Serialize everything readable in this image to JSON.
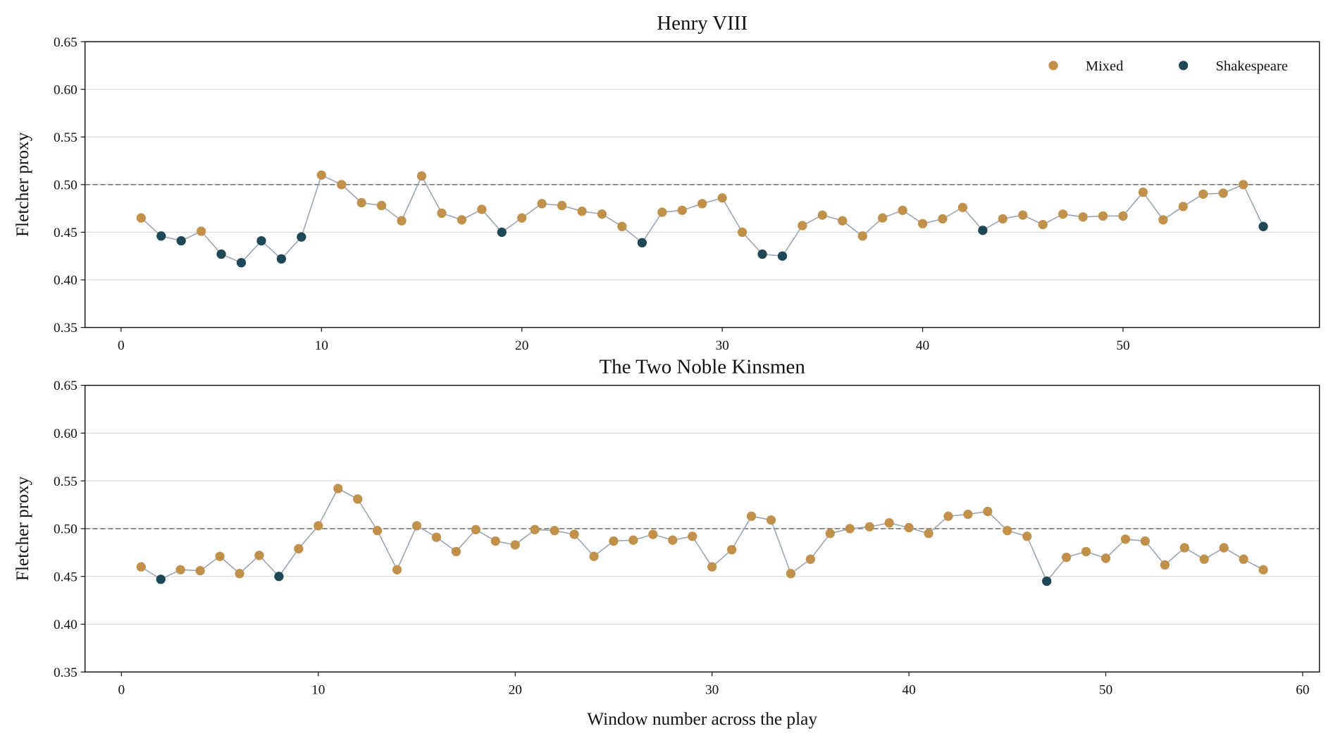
{
  "chart_data": [
    {
      "type": "line",
      "title": "Henry VIII",
      "ylabel": "Fletcher proxy",
      "x": [
        1,
        2,
        3,
        4,
        5,
        6,
        7,
        8,
        9,
        10,
        11,
        12,
        13,
        14,
        15,
        16,
        17,
        18,
        19,
        20,
        21,
        22,
        23,
        24,
        25,
        26,
        27,
        28,
        29,
        30,
        31,
        32,
        33,
        34,
        35,
        36,
        37,
        38,
        39,
        40,
        41,
        42,
        43,
        44,
        45,
        46,
        47,
        48,
        49,
        50,
        51,
        52,
        53,
        54,
        55,
        56,
        57
      ],
      "series": [
        {
          "name": "Mixed",
          "color": "#c1904a",
          "values": [
            0.465,
            null,
            null,
            0.451,
            null,
            null,
            null,
            null,
            null,
            0.51,
            0.5,
            0.481,
            0.478,
            0.462,
            0.509,
            0.47,
            0.463,
            0.474,
            null,
            0.465,
            0.48,
            0.478,
            0.472,
            0.469,
            0.456,
            null,
            0.471,
            0.473,
            0.48,
            0.486,
            0.45,
            null,
            null,
            0.457,
            0.468,
            0.462,
            0.446,
            0.465,
            0.473,
            0.459,
            0.464,
            0.476,
            null,
            0.464,
            0.468,
            0.458,
            0.469,
            0.466,
            0.467,
            0.467,
            0.492,
            0.463,
            0.477,
            0.49,
            0.491,
            0.5,
            null
          ]
        },
        {
          "name": "Shakespeare",
          "color": "#1f4857",
          "values": [
            null,
            0.446,
            0.441,
            null,
            0.427,
            0.418,
            0.441,
            0.422,
            0.445,
            null,
            null,
            null,
            null,
            null,
            null,
            null,
            null,
            null,
            0.45,
            null,
            null,
            null,
            null,
            null,
            null,
            0.439,
            null,
            null,
            null,
            null,
            null,
            0.427,
            0.425,
            null,
            null,
            null,
            null,
            null,
            null,
            null,
            null,
            null,
            0.452,
            null,
            null,
            null,
            null,
            null,
            null,
            null,
            null,
            null,
            null,
            null,
            null,
            null,
            0.456
          ]
        }
      ],
      "line_color": "#9aa4b0",
      "reference_line": 0.5,
      "legend": "upper right",
      "grid": true,
      "xlim": [
        -1.8,
        59.8
      ],
      "xticks": [
        0,
        10,
        20,
        30,
        40,
        50
      ],
      "ylim": [
        0.35,
        0.65
      ],
      "yticks": [
        0.35,
        {
          "value": 0.4,
          "label": "0.40"
        },
        0.45,
        {
          "value": 0.5,
          "label": "0.50"
        },
        0.55,
        {
          "value": 0.6,
          "label": "0.60"
        },
        0.65
      ]
    },
    {
      "type": "line",
      "title": "The Two Noble Kinsmen",
      "xlabel": "Window number across the play",
      "ylabel": "Fletcher proxy",
      "x": [
        1,
        2,
        3,
        4,
        5,
        6,
        7,
        8,
        9,
        10,
        11,
        12,
        13,
        14,
        15,
        16,
        17,
        18,
        19,
        20,
        21,
        22,
        23,
        24,
        25,
        26,
        27,
        28,
        29,
        30,
        31,
        32,
        33,
        34,
        35,
        36,
        37,
        38,
        39,
        40,
        41,
        42,
        43,
        44,
        45,
        46,
        47,
        48,
        49,
        50,
        51,
        52,
        53,
        54,
        55,
        56,
        57,
        58
      ],
      "series": [
        {
          "color": "#c1904a",
          "values": [
            0.46,
            null,
            0.457,
            0.456,
            0.471,
            0.453,
            0.472,
            null,
            0.479,
            0.503,
            0.542,
            0.531,
            0.498,
            0.457,
            0.503,
            0.491,
            0.476,
            0.499,
            0.487,
            0.483,
            0.499,
            0.498,
            0.494,
            0.471,
            0.487,
            0.488,
            0.494,
            0.488,
            0.492,
            0.46,
            0.478,
            0.513,
            0.509,
            0.453,
            0.468,
            0.495,
            0.5,
            0.502,
            0.506,
            0.501,
            0.495,
            0.513,
            0.515,
            0.518,
            0.498,
            0.492,
            null,
            0.47,
            0.476,
            0.469,
            0.489,
            0.487,
            0.462,
            0.48,
            0.468,
            0.48,
            0.468,
            0.457
          ]
        },
        {
          "color": "#1f4857",
          "values": [
            null,
            0.447,
            null,
            null,
            null,
            null,
            null,
            0.45,
            null,
            null,
            null,
            null,
            null,
            null,
            null,
            null,
            null,
            null,
            null,
            null,
            null,
            null,
            null,
            null,
            null,
            null,
            null,
            null,
            null,
            null,
            null,
            null,
            null,
            null,
            null,
            null,
            null,
            null,
            null,
            null,
            null,
            null,
            null,
            null,
            null,
            null,
            0.445,
            null,
            null,
            null,
            null,
            null,
            null,
            null,
            null,
            null,
            null,
            null
          ]
        }
      ],
      "line_color": "#9aa4b0",
      "reference_line": 0.5,
      "grid": true,
      "xlim": [
        -1.85,
        60.85
      ],
      "xticks": [
        0,
        10,
        20,
        30,
        40,
        50,
        60
      ],
      "ylim": [
        0.35,
        0.65
      ],
      "yticks": [
        0.35,
        {
          "value": 0.4,
          "label": "0.40"
        },
        0.45,
        {
          "value": 0.5,
          "label": "0.50"
        },
        0.55,
        {
          "value": 0.6,
          "label": "0.60"
        },
        0.65
      ]
    }
  ]
}
